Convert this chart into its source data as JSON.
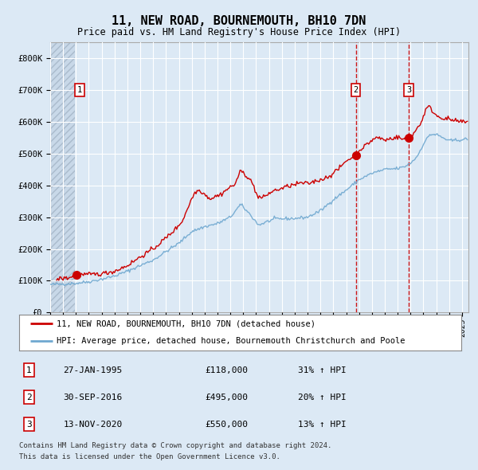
{
  "title": "11, NEW ROAD, BOURNEMOUTH, BH10 7DN",
  "subtitle": "Price paid vs. HM Land Registry's House Price Index (HPI)",
  "bg_color": "#dce9f5",
  "grid_color": "#ffffff",
  "red_line_color": "#cc0000",
  "blue_line_color": "#6fa8d0",
  "ylabel_values": [
    0,
    100000,
    200000,
    300000,
    400000,
    500000,
    600000,
    700000,
    800000
  ],
  "ylabel_labels": [
    "£0",
    "£100K",
    "£200K",
    "£300K",
    "£400K",
    "£500K",
    "£600K",
    "£700K",
    "£800K"
  ],
  "ylim": [
    0,
    850000
  ],
  "xlim_start": 1993.0,
  "xlim_end": 2025.5,
  "hatch_end": 1994.92,
  "purchase_points": [
    {
      "date_num": 1995.07,
      "price": 118000,
      "label": "1"
    },
    {
      "date_num": 2016.75,
      "price": 495000,
      "label": "2"
    },
    {
      "date_num": 2020.87,
      "price": 550000,
      "label": "3"
    }
  ],
  "label_positions": [
    {
      "date_num": 1995.3,
      "price": 700000,
      "label": "1"
    },
    {
      "date_num": 2016.75,
      "price": 700000,
      "label": "2"
    },
    {
      "date_num": 2020.87,
      "price": 700000,
      "label": "3"
    }
  ],
  "vline_dates": [
    2016.75,
    2020.87
  ],
  "legend_line1": "11, NEW ROAD, BOURNEMOUTH, BH10 7DN (detached house)",
  "legend_line2": "HPI: Average price, detached house, Bournemouth Christchurch and Poole",
  "table_rows": [
    {
      "num": "1",
      "date": "27-JAN-1995",
      "price": "£118,000",
      "hpi": "31% ↑ HPI"
    },
    {
      "num": "2",
      "date": "30-SEP-2016",
      "price": "£495,000",
      "hpi": "20% ↑ HPI"
    },
    {
      "num": "3",
      "date": "13-NOV-2020",
      "price": "£550,000",
      "hpi": "13% ↑ HPI"
    }
  ],
  "footnote1": "Contains HM Land Registry data © Crown copyright and database right 2024.",
  "footnote2": "This data is licensed under the Open Government Licence v3.0."
}
